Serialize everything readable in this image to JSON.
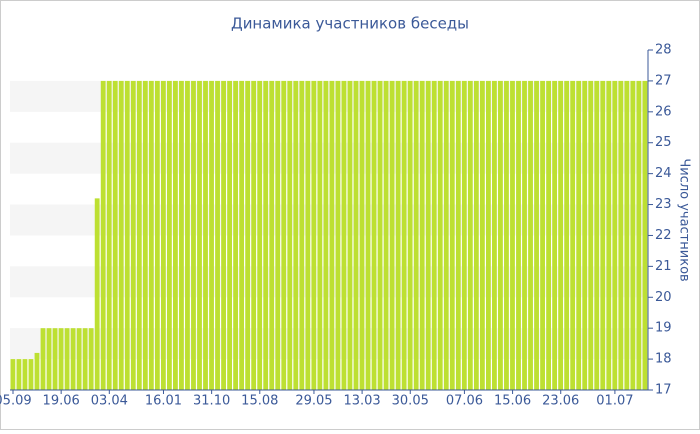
{
  "chart_data": {
    "type": "bar",
    "title": "Динамика участников беседы",
    "y_label": "Число участников",
    "categories": [
      "05.09",
      null,
      null,
      null,
      null,
      null,
      null,
      null,
      "19.06",
      null,
      null,
      null,
      null,
      null,
      null,
      null,
      "03.04",
      null,
      null,
      null,
      null,
      null,
      null,
      null,
      null,
      "16.01",
      null,
      null,
      null,
      null,
      null,
      null,
      null,
      "31.10",
      null,
      null,
      null,
      null,
      null,
      null,
      null,
      "15.08",
      null,
      null,
      null,
      null,
      null,
      null,
      null,
      null,
      "29.05",
      null,
      null,
      null,
      null,
      null,
      null,
      null,
      "13.03",
      null,
      null,
      null,
      null,
      null,
      null,
      null,
      "30.05",
      null,
      null,
      null,
      null,
      null,
      null,
      null,
      null,
      "07.06",
      null,
      null,
      null,
      null,
      null,
      null,
      null,
      "15.06",
      null,
      null,
      null,
      null,
      null,
      null,
      null,
      "23.06",
      null,
      null,
      null,
      null,
      null,
      null,
      null,
      null,
      "01.07",
      null,
      null,
      null,
      null,
      null
    ],
    "values": [
      18,
      18,
      18,
      18,
      18.2,
      19,
      19,
      19,
      19,
      19,
      19,
      19,
      19,
      19,
      23.2,
      27,
      27,
      27,
      27,
      27,
      27,
      27,
      27,
      27,
      27,
      27,
      27,
      27,
      27,
      27,
      27,
      27,
      27,
      27,
      27,
      27,
      27,
      27,
      27,
      27,
      27,
      27,
      27,
      27,
      27,
      27,
      27,
      27,
      27,
      27,
      27,
      27,
      27,
      27,
      27,
      27,
      27,
      27,
      27,
      27,
      27,
      27,
      27,
      27,
      27,
      27,
      27,
      27,
      27,
      27,
      27,
      27,
      27,
      27,
      27,
      27,
      27,
      27,
      27,
      27,
      27,
      27,
      27,
      27,
      27,
      27,
      27,
      27,
      27,
      27,
      27,
      27,
      27,
      27,
      27,
      27,
      27,
      27,
      27,
      27,
      27,
      27,
      27,
      27,
      27,
      27
    ],
    "color": "#bde032",
    "ylim": [
      17,
      28
    ],
    "yticks": [
      17,
      18,
      19,
      20,
      21,
      22,
      23,
      24,
      25,
      26,
      27,
      28
    ],
    "grid": "bands",
    "y_axis_side": "right"
  }
}
